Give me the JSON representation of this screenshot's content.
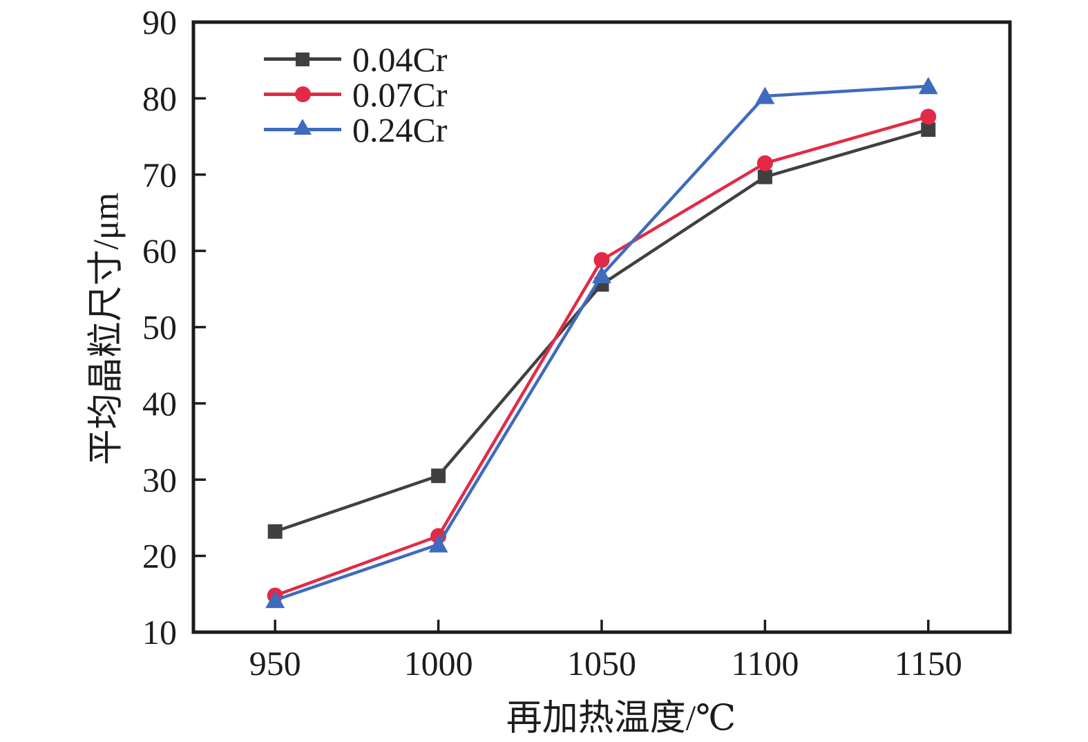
{
  "chart_data": {
    "type": "line",
    "title": "",
    "xlabel": "再加热温度/℃",
    "ylabel": "平均晶粒尺寸/μm",
    "x": [
      950,
      1000,
      1050,
      1100,
      1150
    ],
    "x_ticks": [
      950,
      1000,
      1050,
      1100,
      1150
    ],
    "y_ticks": [
      10,
      20,
      30,
      40,
      50,
      60,
      70,
      80,
      90
    ],
    "xlim": [
      925,
      1175
    ],
    "ylim": [
      10,
      90
    ],
    "grid": false,
    "legend_position": "inside-top-left",
    "series": [
      {
        "name": "0.04Cr",
        "marker": "square",
        "color": "#404040",
        "values": [
          23.2,
          30.5,
          55.6,
          69.7,
          75.9
        ]
      },
      {
        "name": "0.07Cr",
        "marker": "circle",
        "color": "#e22a46",
        "values": [
          14.8,
          22.6,
          58.8,
          71.5,
          77.6
        ]
      },
      {
        "name": "0.24Cr",
        "marker": "triangle",
        "color": "#3e6bbe",
        "values": [
          14.2,
          21.5,
          56.8,
          80.3,
          81.6
        ]
      }
    ]
  },
  "styles": {
    "axis_color": "#1c1c1c",
    "text_color": "#1c1c1c",
    "background": "#ffffff"
  }
}
